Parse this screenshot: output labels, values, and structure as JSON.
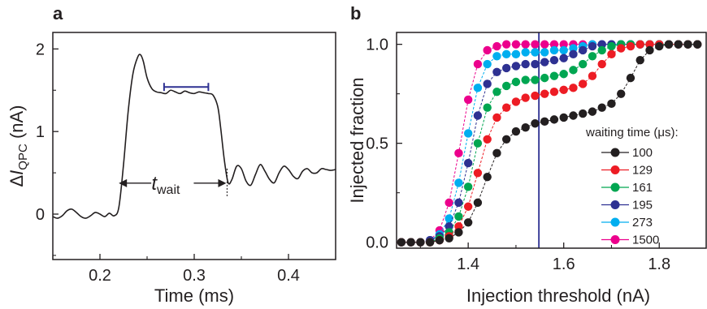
{
  "chart_data": [
    {
      "panel": "a",
      "type": "line",
      "xlabel": "Time (ms)",
      "ylabel_prefix": "Δ",
      "ylabel_italic": "I",
      "ylabel_sub": "QPC",
      "ylabel_suffix": " (nA)",
      "xlim": [
        0.15,
        0.45
      ],
      "ylim": [
        -0.55,
        2.2
      ],
      "xticks": [
        "0.2",
        "0.3",
        "0.4"
      ],
      "yticks": [
        "0",
        "1",
        "2"
      ],
      "annotation_italic": "t",
      "annotation_sub": "wait",
      "colors": {
        "trace": "#231f20",
        "bracket": "#2e3192"
      },
      "bracket_x": [
        0.268,
        0.315
      ],
      "bracket_y": 1.54,
      "wait_arrow_x": [
        0.22,
        0.334
      ],
      "wait_arrow_y": 0.1,
      "series": [
        {
          "x": [
            0.15,
            0.155,
            0.16,
            0.165,
            0.17,
            0.175,
            0.18,
            0.185,
            0.19,
            0.195,
            0.2,
            0.205,
            0.21,
            0.215,
            0.22,
            0.225,
            0.23,
            0.235,
            0.24,
            0.243,
            0.246,
            0.25,
            0.255,
            0.26,
            0.265,
            0.27,
            0.275,
            0.28,
            0.285,
            0.29,
            0.295,
            0.3,
            0.305,
            0.31,
            0.315,
            0.32,
            0.325,
            0.328,
            0.332,
            0.336,
            0.34,
            0.345,
            0.35,
            0.355,
            0.36,
            0.365,
            0.37,
            0.375,
            0.38,
            0.385,
            0.39,
            0.395,
            0.4,
            0.405,
            0.41,
            0.415,
            0.42,
            0.425,
            0.43,
            0.435,
            0.44,
            0.445,
            0.45
          ],
          "y": [
            -0.03,
            -0.05,
            -0.02,
            0.04,
            0.06,
            0.02,
            -0.03,
            -0.05,
            -0.02,
            0.02,
            0.0,
            -0.03,
            0.01,
            -0.02,
            0.08,
            0.6,
            1.25,
            1.7,
            1.9,
            1.93,
            1.85,
            1.65,
            1.52,
            1.48,
            1.47,
            1.46,
            1.5,
            1.48,
            1.46,
            1.49,
            1.47,
            1.46,
            1.48,
            1.47,
            1.46,
            1.44,
            1.3,
            1.05,
            0.65,
            0.38,
            0.42,
            0.58,
            0.55,
            0.4,
            0.35,
            0.48,
            0.6,
            0.52,
            0.42,
            0.38,
            0.5,
            0.58,
            0.54,
            0.46,
            0.43,
            0.52,
            0.55,
            0.5,
            0.5,
            0.55,
            0.54,
            0.53,
            0.54
          ]
        }
      ]
    },
    {
      "panel": "b",
      "type": "line",
      "xlabel": "Injection threshold (nA)",
      "ylabel": "Injected fraction",
      "xlim": [
        1.25,
        1.9
      ],
      "ylim": [
        -0.03,
        1.06
      ],
      "xticks": [
        "1.4",
        "1.6",
        "1.8"
      ],
      "yticks": [
        "0.0",
        "0.5",
        "1.0"
      ],
      "vline_x": 1.548,
      "vline_color": "#2e3192",
      "legend_title": "waiting time (μs):",
      "legend_position": "lower-right",
      "x": [
        1.26,
        1.28,
        1.3,
        1.32,
        1.34,
        1.36,
        1.38,
        1.4,
        1.42,
        1.44,
        1.46,
        1.48,
        1.5,
        1.52,
        1.54,
        1.56,
        1.58,
        1.6,
        1.62,
        1.64,
        1.66,
        1.68,
        1.7,
        1.72,
        1.74,
        1.76,
        1.78,
        1.8,
        1.82,
        1.84,
        1.86,
        1.88
      ],
      "series": [
        {
          "name": "100",
          "color": "#231f20",
          "values": [
            0.0,
            0.0,
            0.0,
            0.0,
            0.01,
            0.02,
            0.05,
            0.1,
            0.2,
            0.33,
            0.45,
            0.52,
            0.56,
            0.58,
            0.6,
            0.61,
            0.62,
            0.63,
            0.64,
            0.65,
            0.66,
            0.68,
            0.7,
            0.75,
            0.83,
            0.92,
            0.97,
            0.99,
            1.0,
            1.0,
            1.0,
            1.0
          ]
        },
        {
          "name": "129",
          "color": "#ed1c24",
          "values": [
            0.0,
            0.0,
            0.0,
            0.0,
            0.01,
            0.03,
            0.08,
            0.18,
            0.35,
            0.52,
            0.63,
            0.68,
            0.71,
            0.73,
            0.74,
            0.75,
            0.76,
            0.77,
            0.78,
            0.8,
            0.84,
            0.9,
            0.95,
            0.98,
            0.99,
            1.0,
            1.0,
            1.0,
            1.0,
            1.0,
            1.0,
            1.0
          ]
        },
        {
          "name": "161",
          "color": "#00a651",
          "values": [
            0.0,
            0.0,
            0.0,
            0.0,
            0.02,
            0.05,
            0.13,
            0.28,
            0.5,
            0.68,
            0.76,
            0.79,
            0.81,
            0.82,
            0.82,
            0.83,
            0.84,
            0.85,
            0.87,
            0.9,
            0.94,
            0.97,
            0.99,
            1.0,
            1.0,
            1.0,
            1.0,
            1.0,
            1.0,
            1.0,
            1.0,
            1.0
          ]
        },
        {
          "name": "195",
          "color": "#2e3192",
          "values": [
            0.0,
            0.0,
            0.0,
            0.01,
            0.03,
            0.08,
            0.2,
            0.4,
            0.64,
            0.8,
            0.86,
            0.88,
            0.89,
            0.9,
            0.9,
            0.91,
            0.92,
            0.93,
            0.95,
            0.97,
            0.99,
            1.0,
            1.0,
            1.0,
            1.0,
            1.0,
            1.0,
            1.0,
            1.0,
            1.0,
            1.0,
            1.0
          ]
        },
        {
          "name": "273",
          "color": "#00aeef",
          "values": [
            0.0,
            0.0,
            0.0,
            0.01,
            0.04,
            0.12,
            0.3,
            0.55,
            0.78,
            0.9,
            0.94,
            0.95,
            0.95,
            0.96,
            0.96,
            0.96,
            0.97,
            0.97,
            0.98,
            0.99,
            1.0,
            1.0,
            1.0,
            1.0,
            1.0,
            1.0,
            1.0,
            1.0,
            1.0,
            1.0,
            1.0,
            1.0
          ]
        },
        {
          "name": "1500",
          "color": "#ec008c",
          "values": [
            0.0,
            0.0,
            0.0,
            0.01,
            0.06,
            0.2,
            0.45,
            0.72,
            0.9,
            0.97,
            0.99,
            1.0,
            1.0,
            1.0,
            1.0,
            1.0,
            1.0,
            1.0,
            1.0,
            1.0,
            1.0,
            1.0,
            1.0,
            1.0,
            1.0,
            1.0,
            1.0,
            1.0,
            1.0,
            1.0,
            1.0,
            1.0
          ]
        }
      ]
    }
  ]
}
